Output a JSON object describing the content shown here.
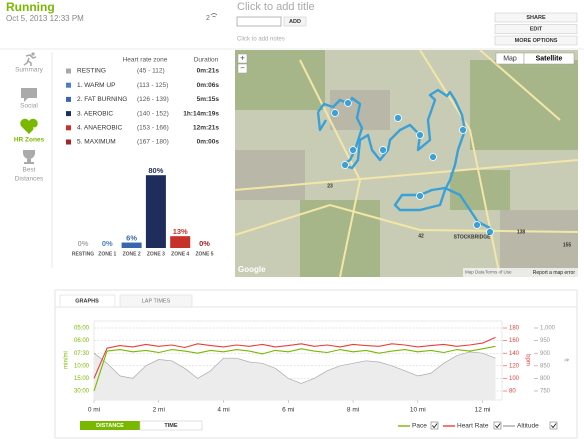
{
  "header": {
    "title": "Running",
    "date": "Oct 5, 2013 12:33 PM",
    "count": "2",
    "title_placeholder": "Click to add title",
    "add_button": "ADD",
    "notes_placeholder": "Click to add notes",
    "buttons": [
      "SHARE",
      "EDIT",
      "MORE OPTIONS"
    ]
  },
  "sidebar": [
    {
      "lines": [
        "Summary"
      ]
    },
    {
      "lines": [
        "Social"
      ]
    },
    {
      "lines": [
        "HR Zones"
      ],
      "active": true
    },
    {
      "lines": [
        "Best",
        "Distances"
      ]
    }
  ],
  "hr_zones": {
    "headers": [
      "Heart rate zone",
      "Duration"
    ],
    "zones": [
      {
        "name": "RESTING",
        "range": "(45 - 112)",
        "duration": "0m:21s",
        "color": "#a8a8a8"
      },
      {
        "name": "1. WARM UP",
        "range": "(113 - 125)",
        "duration": "0m:06s",
        "color": "#4a7fc1"
      },
      {
        "name": "2. FAT BURNING",
        "range": "(126 - 139)",
        "duration": "5m:15s",
        "color": "#3a66b0"
      },
      {
        "name": "3. AEROBIC",
        "range": "(140 - 152)",
        "duration": "1h:14m:19s",
        "color": "#1f2d5c"
      },
      {
        "name": "4. ANAEROBIC",
        "range": "(153 - 166)",
        "duration": "12m:21s",
        "color": "#c8302a"
      },
      {
        "name": "5. MAXIMUM",
        "range": "(167 - 180)",
        "duration": "0m:00s",
        "color": "#a02525"
      }
    ]
  },
  "zone_chart": {
    "type": "bar",
    "categories": [
      "RESTING",
      "ZONE 1",
      "ZONE 2",
      "ZONE 3",
      "ZONE 4",
      "ZONE 5"
    ],
    "values": [
      0,
      0,
      6,
      80,
      13,
      0
    ],
    "value_labels": [
      "0%",
      "0%",
      "6%",
      "80%",
      "13%",
      "0%"
    ],
    "colors": [
      "#a8a8a8",
      "#4a7fc1",
      "#3a66b0",
      "#1f2d5c",
      "#c8302a",
      "#a02525"
    ]
  },
  "map": {
    "buttons": [
      "Map",
      "Satellite"
    ],
    "zoom": [
      "+",
      "−"
    ],
    "labels": [
      "42",
      "23",
      "138",
      "155",
      "STOCKBRIDGE"
    ],
    "logo": "Google",
    "footer": [
      "Map Data",
      "Terms of Use",
      "Report a map error"
    ]
  },
  "graph": {
    "tabs": [
      "GRAPHS",
      "LAP TIMES"
    ],
    "x_buttons": [
      "DISTANCE",
      "TIME"
    ],
    "chart_data": {
      "type": "line",
      "x": [
        0,
        0.4,
        0.8,
        1.2,
        1.6,
        2,
        2.4,
        2.8,
        3.2,
        3.6,
        4,
        4.4,
        4.8,
        5.2,
        5.6,
        6,
        6.4,
        6.8,
        7.2,
        7.6,
        8,
        8.4,
        8.8,
        9.2,
        9.6,
        10,
        10.4,
        10.8,
        11.2,
        11.6,
        12,
        12.4
      ],
      "xlim": [
        0,
        12.6
      ],
      "xticks": [
        {
          "value": 0,
          "label": "0 mi"
        },
        {
          "value": 2,
          "label": "2 mi"
        },
        {
          "value": 4,
          "label": "4 mi"
        },
        {
          "value": 6,
          "label": "6 mi"
        },
        {
          "value": 8,
          "label": "8 mi"
        },
        {
          "value": 10,
          "label": "10 mi"
        },
        {
          "value": 12,
          "label": "12 mi"
        }
      ],
      "y_label": "min/mi",
      "yscale": "reciprocal",
      "ylim": [
        5,
        30
      ],
      "yticks": [
        {
          "value": 5,
          "label": "05:00"
        },
        {
          "value": 6,
          "label": "06:00"
        },
        {
          "value": 7.5,
          "label": "07:30"
        },
        {
          "value": 10,
          "label": "10:00"
        },
        {
          "value": 15,
          "label": "15:00"
        },
        {
          "value": 30,
          "label": "30:00"
        }
      ],
      "y2_label": "bpm",
      "y2lim": [
        80,
        180
      ],
      "y2ticks": [
        180,
        160,
        140,
        120,
        100,
        80
      ],
      "y3_label": "ft",
      "y3lim": [
        750,
        1000
      ],
      "y3ticks": [
        {
          "value": 1000,
          "label": "1,000"
        },
        950,
        900,
        850,
        800,
        750
      ],
      "grid": true,
      "series": [
        {
          "name": "Pace",
          "color": "#7ab800",
          "axis": "y",
          "values": [
            30,
            7.2,
            7.0,
            7.3,
            7.1,
            7.4,
            7.0,
            7.2,
            7.5,
            7.1,
            7.3,
            7.0,
            7.2,
            7.6,
            7.1,
            7.3,
            6.9,
            7.2,
            7.4,
            7.0,
            7.3,
            7.1,
            7.5,
            7.2,
            7.0,
            7.3,
            7.1,
            7.4,
            7.0,
            7.2,
            6.9,
            6.6
          ]
        },
        {
          "name": "Heart Rate",
          "color": "#e8403a",
          "axis": "y2",
          "values": [
            100,
            148,
            152,
            150,
            154,
            151,
            153,
            149,
            155,
            152,
            150,
            153,
            151,
            154,
            150,
            152,
            155,
            151,
            153,
            150,
            154,
            152,
            151,
            155,
            153,
            150,
            152,
            154,
            151,
            153,
            156,
            165
          ]
        },
        {
          "name": "Altitude",
          "color": "#aaaaaa",
          "axis": "y3",
          "values": [
            900,
            860,
            810,
            800,
            850,
            875,
            870,
            840,
            800,
            830,
            880,
            880,
            865,
            860,
            840,
            800,
            780,
            800,
            830,
            850,
            860,
            870,
            865,
            850,
            830,
            810,
            820,
            860,
            890,
            905,
            900,
            880
          ]
        }
      ]
    }
  }
}
